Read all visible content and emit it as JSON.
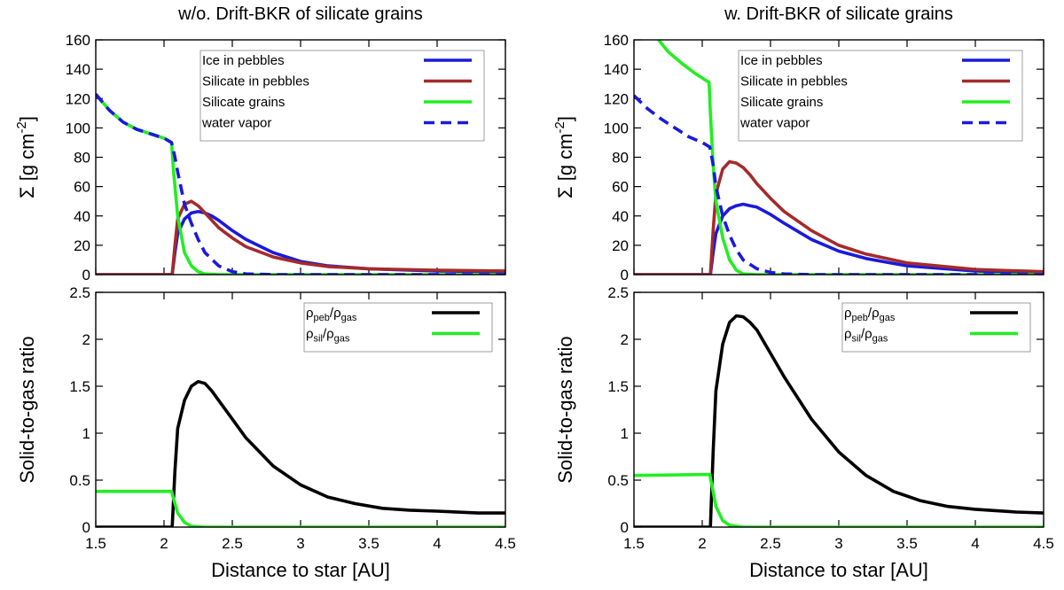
{
  "figure": {
    "xlabel": "Distance to star [AU]",
    "colors": {
      "ice": "#1a1adc",
      "silicate_pebbles": "#a52a2a",
      "silicate_grains": "#22ee22",
      "water_vapor": "#1a1adc",
      "pebble_ratio": "#000000"
    }
  },
  "chart_data": [
    {
      "id": "left-top",
      "type": "line",
      "title": "w/o. Drift-BKR of silicate grains",
      "xlabel": "",
      "ylabel": "Σ [g cm",
      "ylabel_sup": "-2",
      "ylabel_end": "]",
      "xlim": [
        1.5,
        4.5
      ],
      "ylim": [
        0,
        160
      ],
      "yticks": [
        "0",
        "20",
        "40",
        "60",
        "80",
        "100",
        "120",
        "140",
        "160"
      ],
      "ytick_values": [
        0,
        20,
        40,
        60,
        80,
        100,
        120,
        140,
        160
      ],
      "legend_position": "top-right",
      "series": [
        {
          "name": "Ice in pebbles",
          "style": "solid",
          "color": "#1a1adc",
          "x": [
            1.5,
            2.055,
            2.06,
            2.08,
            2.1,
            2.15,
            2.2,
            2.25,
            2.3,
            2.35,
            2.4,
            2.5,
            2.6,
            2.8,
            3.0,
            3.2,
            3.5,
            4.0,
            4.5
          ],
          "y": [
            0,
            0,
            0,
            15,
            28,
            38,
            42,
            43,
            42,
            40,
            37,
            30,
            24,
            15,
            9,
            6,
            4,
            2.5,
            2
          ]
        },
        {
          "name": "Silicate in pebbles",
          "style": "solid",
          "color": "#a52a2a",
          "x": [
            1.5,
            2.055,
            2.06,
            2.08,
            2.1,
            2.15,
            2.2,
            2.25,
            2.3,
            2.35,
            2.4,
            2.5,
            2.6,
            2.8,
            3.0,
            3.2,
            3.5,
            4.0,
            4.5
          ],
          "y": [
            0,
            0,
            0,
            20,
            38,
            48,
            50,
            47,
            42,
            37,
            32,
            25,
            19,
            12,
            8,
            5.5,
            4,
            3,
            2.5
          ]
        },
        {
          "name": "Silicate grains",
          "style": "solid",
          "color": "#22ee22",
          "x": [
            1.5,
            1.6,
            1.7,
            1.8,
            1.9,
            2.0,
            2.055,
            2.07,
            2.1,
            2.15,
            2.2,
            2.25,
            2.3,
            2.4,
            2.5,
            3.0,
            4.5
          ],
          "y": [
            123,
            112,
            104,
            99,
            96,
            93,
            90,
            70,
            40,
            15,
            6,
            2,
            0.5,
            0,
            0,
            0,
            0
          ]
        },
        {
          "name": "water vapor",
          "style": "dashed",
          "color": "#1a1adc",
          "x": [
            1.5,
            1.6,
            1.7,
            1.8,
            1.9,
            2.0,
            2.055,
            2.08,
            2.1,
            2.15,
            2.2,
            2.25,
            2.3,
            2.4,
            2.5,
            2.6,
            2.8,
            3.0,
            4.5
          ],
          "y": [
            123,
            112,
            104,
            99,
            96,
            93,
            90,
            80,
            70,
            48,
            35,
            24,
            15,
            6,
            2,
            0.5,
            0,
            0,
            0
          ]
        }
      ]
    },
    {
      "id": "right-top",
      "type": "line",
      "title": "w. Drift-BKR of silicate grains",
      "xlabel": "",
      "ylabel": "Σ [g cm",
      "ylabel_sup": "-2",
      "ylabel_end": "]",
      "xlim": [
        1.5,
        4.5
      ],
      "ylim": [
        0,
        160
      ],
      "yticks": [
        "0",
        "20",
        "40",
        "60",
        "80",
        "100",
        "120",
        "140",
        "160"
      ],
      "ytick_values": [
        0,
        20,
        40,
        60,
        80,
        100,
        120,
        140,
        160
      ],
      "legend_position": "top-right",
      "series": [
        {
          "name": "Ice in pebbles",
          "style": "solid",
          "color": "#1a1adc",
          "x": [
            1.5,
            2.055,
            2.06,
            2.08,
            2.1,
            2.15,
            2.2,
            2.25,
            2.3,
            2.35,
            2.4,
            2.5,
            2.6,
            2.8,
            3.0,
            3.2,
            3.5,
            4.0,
            4.5
          ],
          "y": [
            0,
            0,
            0,
            15,
            28,
            40,
            45,
            47,
            48,
            47,
            46,
            41,
            35,
            24,
            16,
            11,
            6,
            2.5,
            1.5
          ]
        },
        {
          "name": "Silicate in pebbles",
          "style": "solid",
          "color": "#a52a2a",
          "x": [
            1.5,
            2.055,
            2.06,
            2.08,
            2.1,
            2.15,
            2.2,
            2.25,
            2.3,
            2.35,
            2.4,
            2.5,
            2.6,
            2.8,
            3.0,
            3.2,
            3.5,
            4.0,
            4.5
          ],
          "y": [
            0,
            0,
            0,
            30,
            55,
            72,
            77,
            76,
            73,
            68,
            62,
            52,
            43,
            30,
            20,
            14,
            8,
            3.5,
            2
          ]
        },
        {
          "name": "Silicate grains",
          "style": "solid",
          "color": "#22ee22",
          "x": [
            1.68,
            1.75,
            1.85,
            1.95,
            2.05,
            2.06,
            2.08,
            2.1,
            2.15,
            2.2,
            2.25,
            2.3,
            2.4,
            2.5,
            4.5
          ],
          "y": [
            160,
            152,
            144,
            137,
            131,
            110,
            75,
            50,
            25,
            10,
            3,
            0.5,
            0,
            0,
            0
          ]
        },
        {
          "name": "water vapor",
          "style": "dashed",
          "color": "#1a1adc",
          "x": [
            1.5,
            1.6,
            1.7,
            1.8,
            1.9,
            2.0,
            2.055,
            2.08,
            2.1,
            2.15,
            2.2,
            2.25,
            2.3,
            2.4,
            2.5,
            2.6,
            2.8,
            3.0,
            4.5
          ],
          "y": [
            122,
            113,
            106,
            100,
            94,
            90,
            87,
            75,
            60,
            40,
            27,
            17,
            10,
            4,
            1.5,
            0.5,
            0,
            0,
            0
          ]
        }
      ]
    },
    {
      "id": "left-bottom",
      "type": "line",
      "xlabel": "Distance to star [AU]",
      "ylabel": "Solid-to-gas ratio",
      "xlim": [
        1.5,
        4.5
      ],
      "ylim": [
        0,
        2.5
      ],
      "xticks": [
        "1.5",
        "2",
        "2.5",
        "3",
        "3.5",
        "4",
        "4.5"
      ],
      "xtick_values": [
        1.5,
        2,
        2.5,
        3,
        3.5,
        4,
        4.5
      ],
      "yticks": [
        "0",
        "0.5",
        "1",
        "1.5",
        "2",
        "2.5"
      ],
      "ytick_values": [
        0,
        0.5,
        1,
        1.5,
        2,
        2.5
      ],
      "legend_position": "top-right",
      "series": [
        {
          "name": "ρpeb/ρgas",
          "name_main": "ρ",
          "name_sub1": "peb",
          "name_mid": "/ρ",
          "name_sub2": "gas",
          "style": "solid",
          "color": "#000000",
          "x": [
            1.5,
            2.055,
            2.06,
            2.08,
            2.1,
            2.15,
            2.2,
            2.25,
            2.3,
            2.35,
            2.4,
            2.5,
            2.6,
            2.8,
            3.0,
            3.2,
            3.4,
            3.6,
            3.8,
            4.0,
            4.3,
            4.5
          ],
          "y": [
            0,
            0,
            0,
            0.6,
            1.05,
            1.35,
            1.5,
            1.55,
            1.53,
            1.45,
            1.35,
            1.15,
            0.95,
            0.65,
            0.45,
            0.32,
            0.25,
            0.2,
            0.18,
            0.17,
            0.15,
            0.15
          ]
        },
        {
          "name": "ρsil/ρgas",
          "name_main": "ρ",
          "name_sub1": "sil",
          "name_mid": "/ρ",
          "name_sub2": "gas",
          "style": "solid",
          "color": "#22ee22",
          "x": [
            1.5,
            2.055,
            2.07,
            2.1,
            2.15,
            2.2,
            2.3,
            2.5,
            4.5
          ],
          "y": [
            0.38,
            0.38,
            0.3,
            0.15,
            0.05,
            0.01,
            0,
            0,
            0
          ]
        }
      ]
    },
    {
      "id": "right-bottom",
      "type": "line",
      "xlabel": "Distance to star [AU]",
      "ylabel": "Solid-to-gas ratio",
      "xlim": [
        1.5,
        4.5
      ],
      "ylim": [
        0,
        2.5
      ],
      "xticks": [
        "1.5",
        "2",
        "2.5",
        "3",
        "3.5",
        "4",
        "4.5"
      ],
      "xtick_values": [
        1.5,
        2,
        2.5,
        3,
        3.5,
        4,
        4.5
      ],
      "yticks": [
        "0",
        "0.5",
        "1",
        "1.5",
        "2",
        "2.5"
      ],
      "ytick_values": [
        0,
        0.5,
        1,
        1.5,
        2,
        2.5
      ],
      "legend_position": "top-right",
      "series": [
        {
          "name": "ρpeb/ρgas",
          "name_main": "ρ",
          "name_sub1": "peb",
          "name_mid": "/ρ",
          "name_sub2": "gas",
          "style": "solid",
          "color": "#000000",
          "x": [
            1.5,
            2.055,
            2.06,
            2.08,
            2.1,
            2.15,
            2.2,
            2.25,
            2.3,
            2.35,
            2.4,
            2.5,
            2.6,
            2.8,
            3.0,
            3.2,
            3.4,
            3.6,
            3.8,
            4.0,
            4.3,
            4.5
          ],
          "y": [
            0,
            0,
            0,
            0.8,
            1.45,
            1.95,
            2.18,
            2.25,
            2.24,
            2.18,
            2.1,
            1.85,
            1.6,
            1.15,
            0.8,
            0.55,
            0.38,
            0.28,
            0.22,
            0.19,
            0.16,
            0.15
          ]
        },
        {
          "name": "ρsil/ρgas",
          "name_main": "ρ",
          "name_sub1": "sil",
          "name_mid": "/ρ",
          "name_sub2": "gas",
          "style": "solid",
          "color": "#22ee22",
          "x": [
            1.5,
            2.055,
            2.07,
            2.1,
            2.15,
            2.2,
            2.3,
            2.5,
            4.5
          ],
          "y": [
            0.55,
            0.56,
            0.45,
            0.22,
            0.07,
            0.02,
            0,
            0,
            0
          ]
        }
      ]
    }
  ]
}
